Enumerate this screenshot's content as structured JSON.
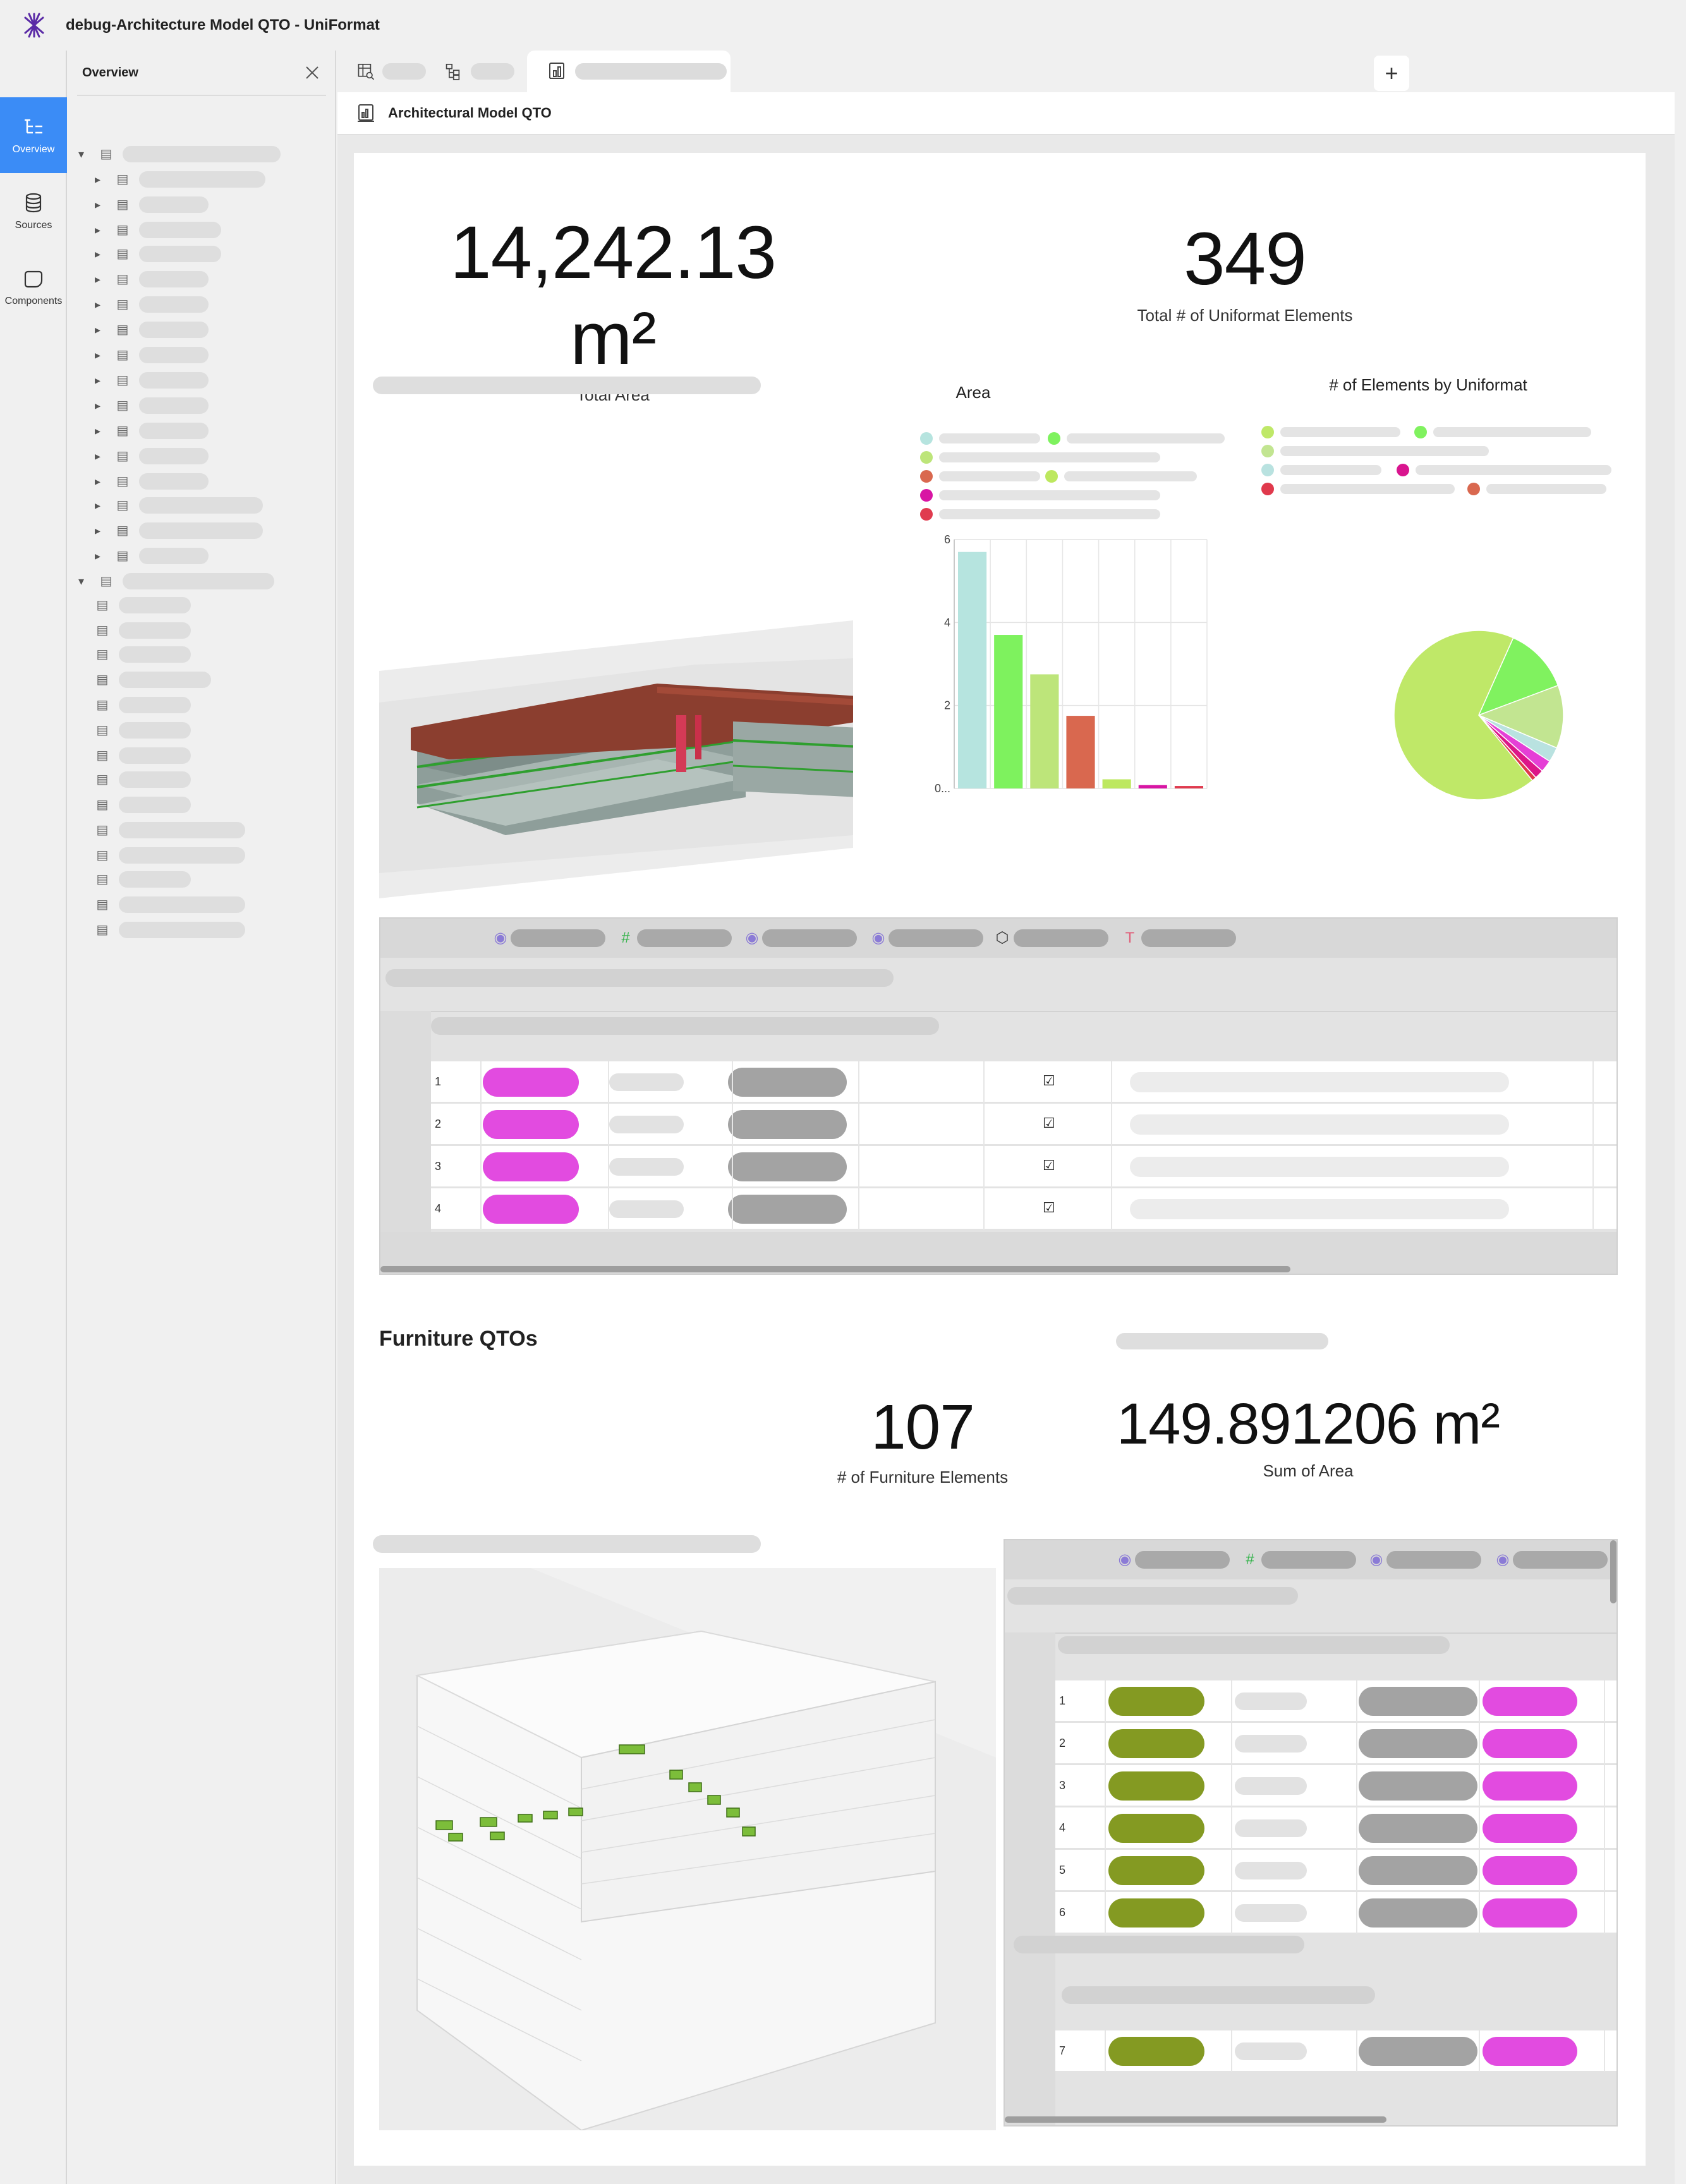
{
  "window": {
    "title": "debug-Architecture Model QTO - UniFormat"
  },
  "rail": {
    "items": [
      {
        "label": "Overview",
        "icon": "overview-icon",
        "active": true
      },
      {
        "label": "Sources",
        "icon": "database-icon",
        "active": false
      },
      {
        "label": "Components",
        "icon": "components-icon",
        "active": false
      }
    ]
  },
  "panel": {
    "title": "Overview"
  },
  "document": {
    "title": "Architectural Model QTO"
  },
  "kpis": {
    "total_area": {
      "value": "14,242.13 m²",
      "label": "Total Area"
    },
    "total_elements": {
      "value": "349",
      "label": "Total # of Uniformat Elements"
    },
    "furniture_count": {
      "value": "107",
      "label": "# of Furniture Elements"
    },
    "furniture_area": {
      "value": "149.891206 m²",
      "label": "Sum of Area"
    }
  },
  "section": {
    "furniture_title": "Furniture QTOs"
  },
  "chart_data": [
    {
      "type": "bar",
      "title": "Area",
      "yticks": [
        "0...",
        "2",
        "4",
        "6"
      ],
      "ylim": [
        0,
        6
      ],
      "values": [
        5.7,
        3.7,
        2.75,
        1.75,
        0.22,
        0.08,
        0.06
      ],
      "colors": [
        "#b6e4df",
        "#7ef25e",
        "#bde57a",
        "#d9684f",
        "#bde85f",
        "#d815a4",
        "#e03b4f"
      ],
      "grid": true
    },
    {
      "type": "pie",
      "title": "# of Elements by Uniformat",
      "values": [
        236,
        44,
        42,
        10,
        8,
        6,
        3
      ],
      "colors": [
        "#bfe868",
        "#80f25f",
        "#c2e591",
        "#b9e2e0",
        "#e53fd6",
        "#dc1689",
        "#e0394c"
      ]
    }
  ],
  "table1": {
    "rows": [
      {
        "n": "1",
        "checked": true
      },
      {
        "n": "2",
        "checked": true
      },
      {
        "n": "3",
        "checked": true
      },
      {
        "n": "4",
        "checked": true
      }
    ]
  },
  "table2": {
    "rows": [
      {
        "n": "1"
      },
      {
        "n": "2"
      },
      {
        "n": "3"
      },
      {
        "n": "4"
      },
      {
        "n": "5"
      },
      {
        "n": "6"
      }
    ],
    "group2_rows": [
      {
        "n": "7"
      }
    ]
  },
  "colors": {
    "accent": "#3b8cf6",
    "magenta_pill": "#e24be0",
    "olive_pill": "#849a22",
    "grey_pill": "#a3a3a3"
  }
}
